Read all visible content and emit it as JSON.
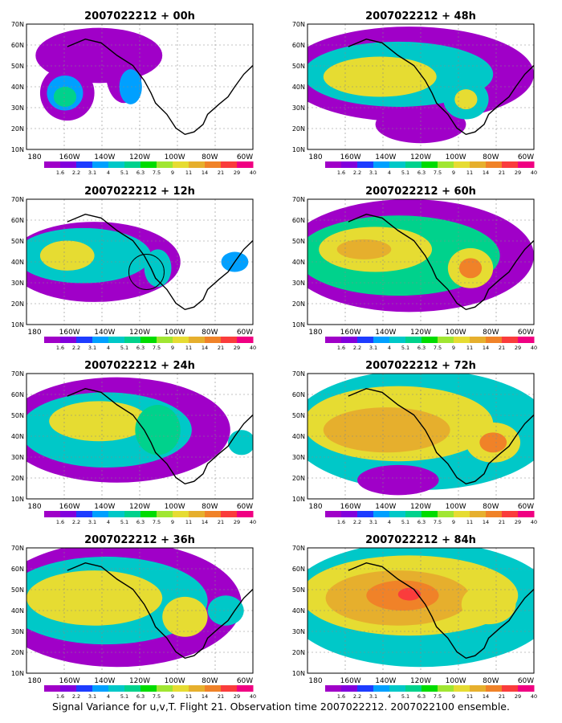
{
  "caption": "Signal Variance for u,v,T. Flight 21. Observation time 2007022212. 2007022100 ensemble.",
  "lat_labels": [
    "10N",
    "20N",
    "30N",
    "40N",
    "50N",
    "60N",
    "70N"
  ],
  "lon_labels": [
    "180",
    "160W",
    "140W",
    "120W",
    "100W",
    "80W",
    "60W"
  ],
  "colorbar": {
    "labels": [
      "1.6",
      "2.2",
      "3.1",
      "4",
      "5.1",
      "6.3",
      "7.5",
      "9",
      "11",
      "14",
      "21",
      "29",
      "40"
    ],
    "colors": [
      "#a000c8",
      "#8200dc",
      "#1e3cff",
      "#00a0ff",
      "#00c8c8",
      "#00d28c",
      "#00dc00",
      "#a0e632",
      "#e6dc32",
      "#e6af2d",
      "#f08228",
      "#fa3c3c",
      "#f00082"
    ]
  },
  "panels": [
    {
      "title": "2007022212 + 00h"
    },
    {
      "title": "2007022212 + 48h"
    },
    {
      "title": "2007022212 + 12h"
    },
    {
      "title": "2007022212 + 60h"
    },
    {
      "title": "2007022212 + 24h"
    },
    {
      "title": "2007022212 + 72h"
    },
    {
      "title": "2007022212 + 36h"
    },
    {
      "title": "2007022212 + 84h"
    }
  ]
}
